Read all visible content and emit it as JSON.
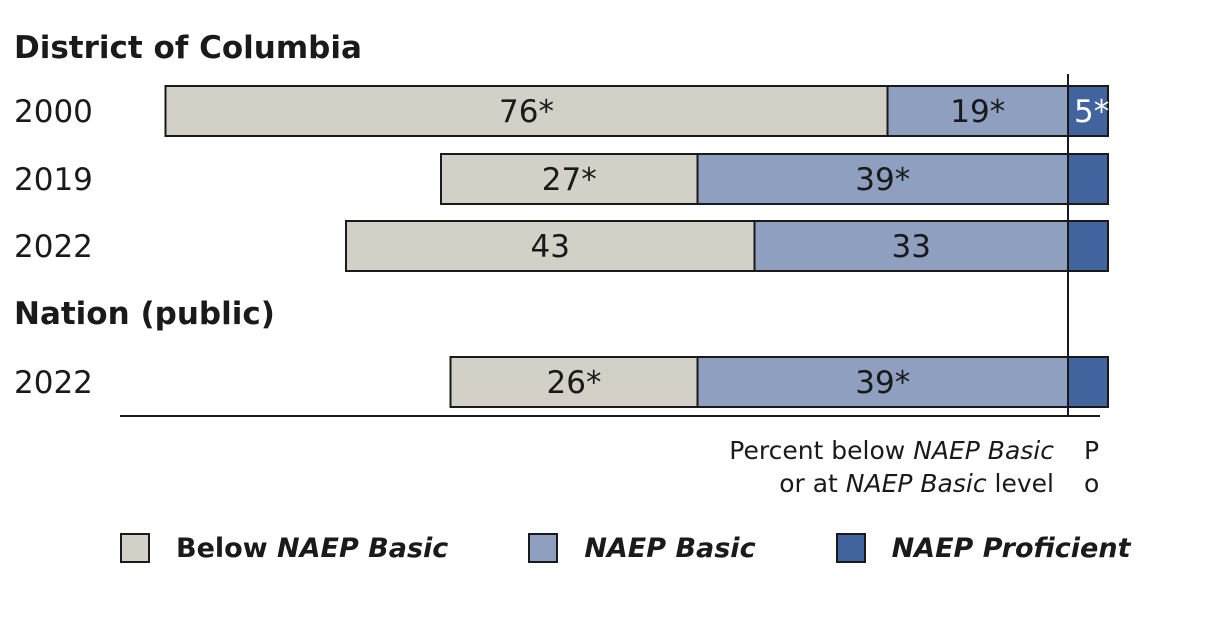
{
  "chart_data": {
    "type": "bar",
    "orientation": "horizontal-diverging",
    "groups": [
      {
        "name": "District of Columbia",
        "rows": [
          {
            "year": "2000",
            "below_basic": "76*",
            "basic": "19*",
            "proficient": "5*"
          },
          {
            "year": "2019",
            "below_basic": "27*",
            "basic": "39*",
            "proficient": ""
          },
          {
            "year": "2022",
            "below_basic": "43",
            "basic": "33",
            "proficient": ""
          }
        ]
      },
      {
        "name": "Nation (public)",
        "rows": [
          {
            "year": "2022",
            "below_basic": "26*",
            "basic": "39*",
            "proficient": ""
          }
        ]
      }
    ],
    "values": {
      "below_basic": [
        76,
        27,
        43,
        26
      ],
      "basic": [
        19,
        39,
        33,
        39
      ]
    },
    "axis_label_left": {
      "line1_a": "Percent below ",
      "line1_b": "NAEP Basic",
      "line2_a": "or at ",
      "line2_b": "NAEP Basic",
      "line2_c": " level"
    },
    "axis_label_right": {
      "line1": "P",
      "line2": "o"
    },
    "legend": [
      {
        "label_a": "Below ",
        "label_b": "NAEP Basic",
        "color": "#d3d0c8"
      },
      {
        "label_a": "",
        "label_b": "NAEP Basic",
        "color": "#8e9fbf"
      },
      {
        "label_a": "",
        "label_b": "NAEP Proficient",
        "color": "#41649f"
      }
    ],
    "colors": {
      "below_basic": "#d3d0c8",
      "basic": "#8e9fbf",
      "proficient": "#41649f"
    }
  }
}
